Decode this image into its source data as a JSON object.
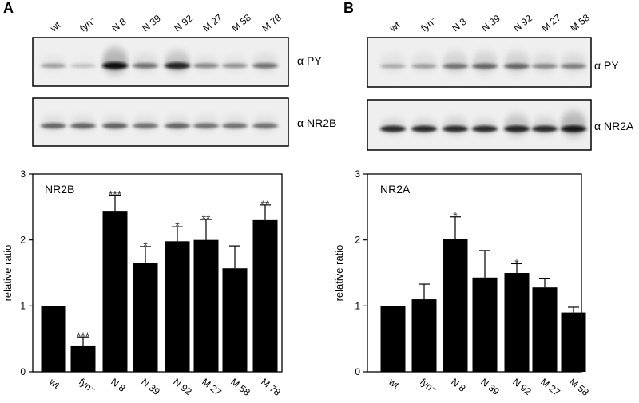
{
  "panels": [
    {
      "letter": "A",
      "lanes": [
        "wt",
        "fyn⁻",
        "N 8",
        "N 39",
        "N 92",
        "M 27",
        "M 58",
        "M 78"
      ],
      "blots": [
        {
          "label": "α PY",
          "intensity": [
            0.35,
            0.2,
            1.0,
            0.55,
            0.9,
            0.45,
            0.4,
            0.55
          ],
          "spread": [
            0.5,
            0.4,
            1.0,
            0.6,
            0.8,
            0.5,
            0.5,
            0.6
          ]
        },
        {
          "label": "α NR2B",
          "intensity": [
            0.6,
            0.6,
            0.62,
            0.55,
            0.6,
            0.55,
            0.55,
            0.55
          ],
          "spread": [
            0.5,
            0.5,
            0.5,
            0.5,
            0.5,
            0.5,
            0.5,
            0.5
          ]
        }
      ],
      "chart_data": {
        "type": "bar",
        "title": "NR2B",
        "ylabel": "relative ratio",
        "ylim": [
          0,
          3
        ],
        "yticks": [
          0,
          1,
          2,
          3
        ],
        "categories": [
          "wt",
          "fyn⁻",
          "N 8",
          "N 39",
          "N 92",
          "M 27",
          "M 58",
          "M 78"
        ],
        "values": [
          1.0,
          0.4,
          2.43,
          1.65,
          1.98,
          2.0,
          1.57,
          2.3
        ],
        "errors": [
          0,
          0.13,
          0.25,
          0.25,
          0.22,
          0.31,
          0.34,
          0.23
        ],
        "significance": [
          "",
          "***",
          "***",
          "*",
          "*",
          "**",
          "",
          "**"
        ]
      }
    },
    {
      "letter": "B",
      "lanes": [
        "wt",
        "fyn⁻",
        "N 8",
        "N 39",
        "N 92",
        "M 27",
        "M 58"
      ],
      "blots": [
        {
          "label": "α PY",
          "intensity": [
            0.3,
            0.35,
            0.55,
            0.6,
            0.6,
            0.45,
            0.5
          ],
          "spread": [
            0.7,
            0.7,
            0.8,
            0.8,
            0.8,
            0.7,
            0.7
          ]
        },
        {
          "label": "α NR2A",
          "intensity": [
            0.85,
            0.85,
            0.85,
            0.85,
            0.9,
            0.85,
            0.95
          ],
          "spread": [
            0.5,
            0.5,
            0.6,
            0.5,
            0.8,
            0.6,
            1.0
          ]
        }
      ],
      "chart_data": {
        "type": "bar",
        "title": "NR2A",
        "ylabel": "relative ratio",
        "ylim": [
          0,
          3
        ],
        "yticks": [
          0,
          1,
          2,
          3
        ],
        "categories": [
          "wt",
          "fyn⁻",
          "N 8",
          "N 39",
          "N 92",
          "M 27",
          "M 58"
        ],
        "values": [
          1.0,
          1.1,
          2.02,
          1.43,
          1.5,
          1.28,
          0.9
        ],
        "errors": [
          0,
          0.23,
          0.33,
          0.41,
          0.14,
          0.14,
          0.08
        ],
        "significance": [
          "",
          "",
          "*",
          "",
          "*",
          "",
          ""
        ]
      }
    }
  ]
}
